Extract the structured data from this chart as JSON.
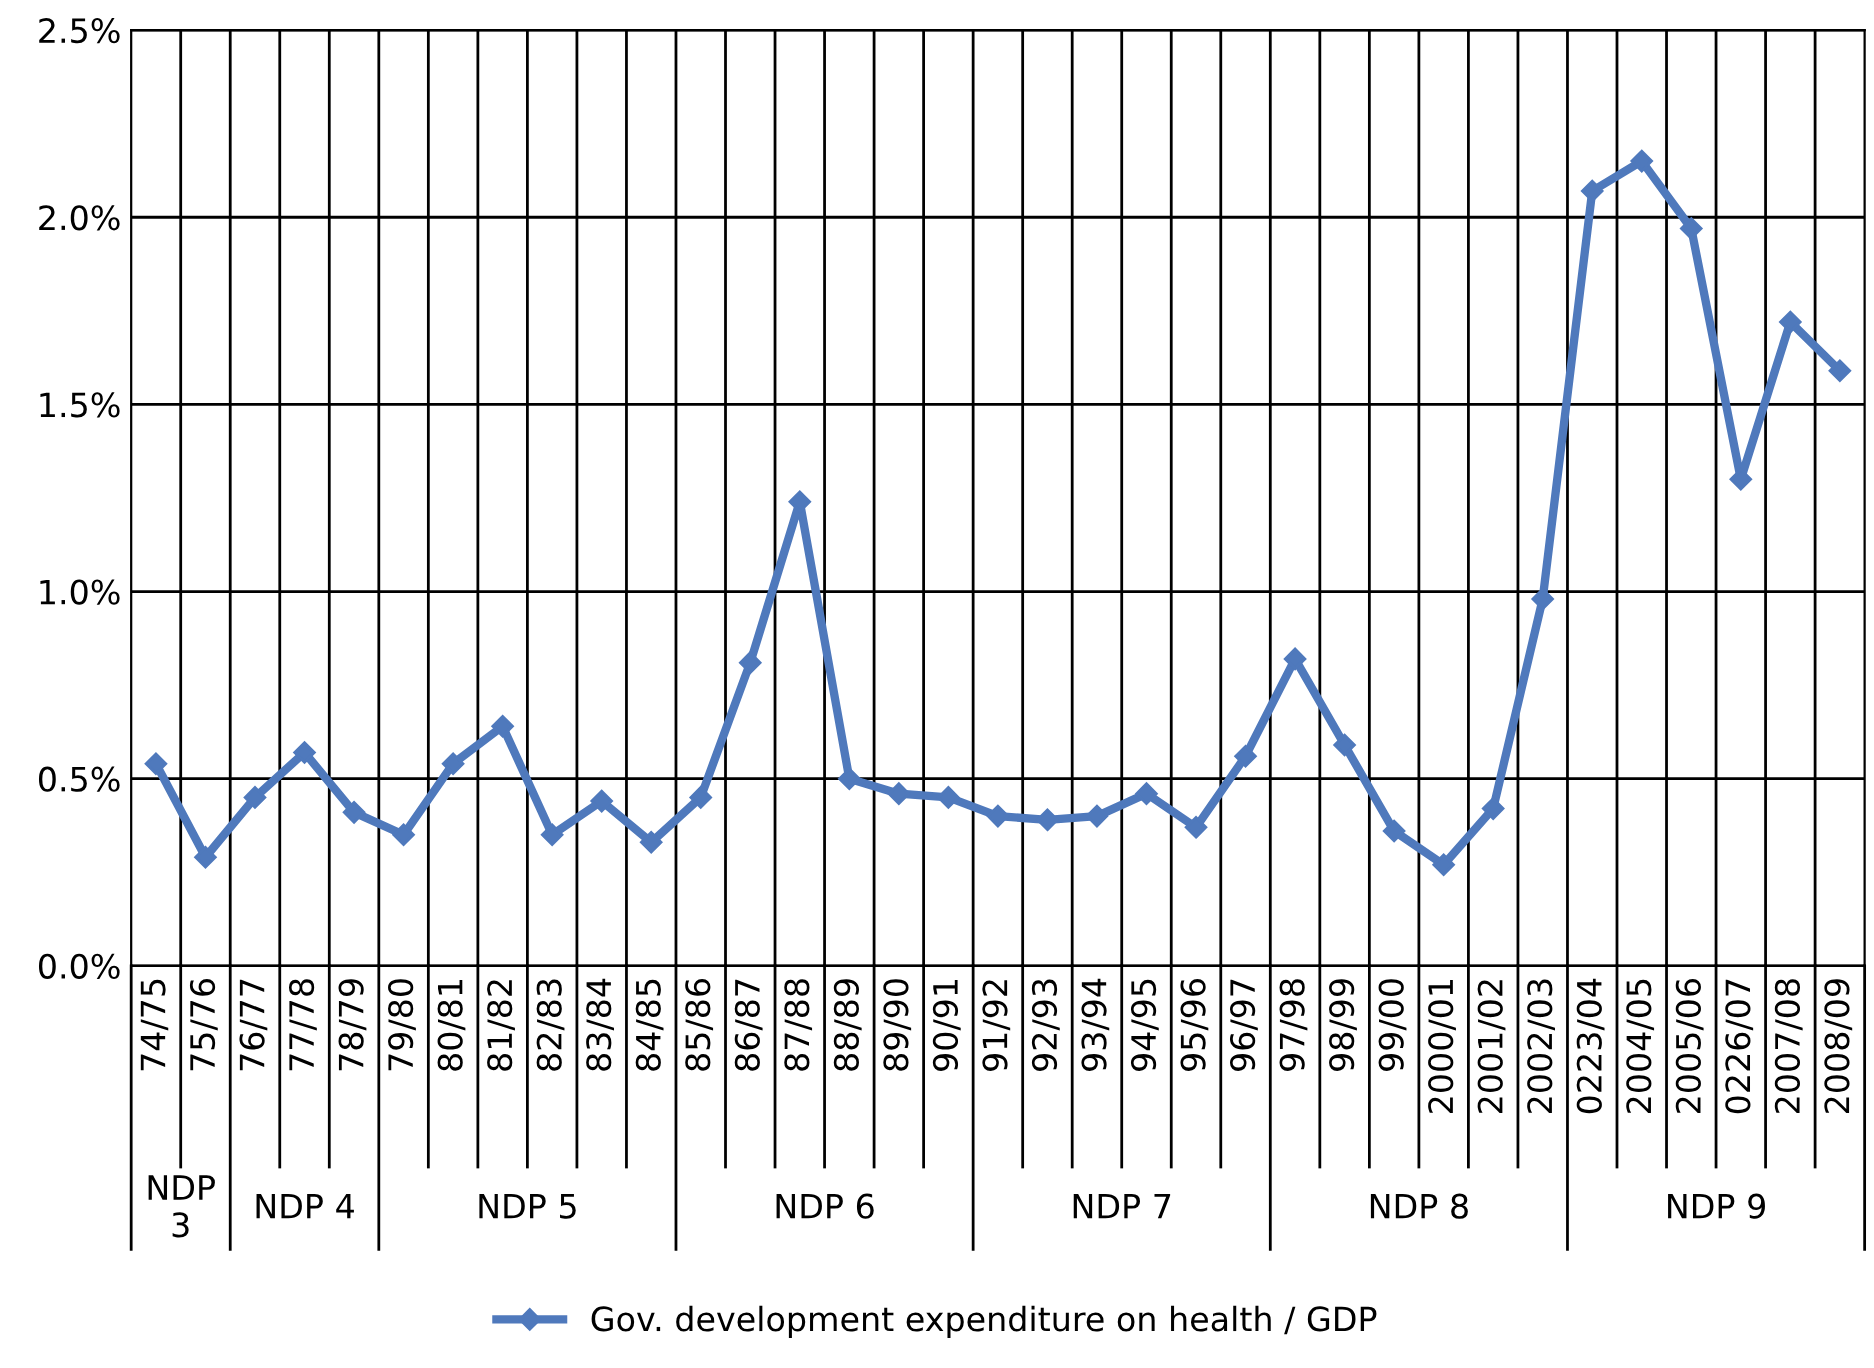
{
  "chart_data": {
    "type": "line",
    "categories": [
      "74/75",
      "75/76",
      "76/77",
      "77/78",
      "78/79",
      "79/80",
      "80/81",
      "81/82",
      "82/83",
      "83/84",
      "84/85",
      "85/86",
      "86/87",
      "87/88",
      "88/89",
      "89/90",
      "90/91",
      "91/92",
      "92/93",
      "93/94",
      "94/95",
      "95/96",
      "96/97",
      "97/98",
      "98/99",
      "99/00",
      "2000/01",
      "2001/02",
      "2002/03",
      "0223/04",
      "2004/05",
      "2005/06",
      "0226/07",
      "2007/08",
      "2008/09"
    ],
    "series": [
      {
        "name": "Gov. development expenditure on health / GDP",
        "color": "#4f79bc",
        "values": [
          0.54,
          0.29,
          0.45,
          0.57,
          0.41,
          0.35,
          0.54,
          0.64,
          0.35,
          0.44,
          0.33,
          0.45,
          0.81,
          1.24,
          0.5,
          0.46,
          0.45,
          0.4,
          0.39,
          0.4,
          0.46,
          0.37,
          0.56,
          0.82,
          0.59,
          0.36,
          0.27,
          0.42,
          0.98,
          2.07,
          2.15,
          1.97,
          1.3,
          1.72,
          1.59
        ]
      }
    ],
    "ylim": [
      0,
      2.5
    ],
    "yticks": [
      {
        "value": 0,
        "label": "0.0%"
      },
      {
        "value": 0.5,
        "label": "0.5%"
      },
      {
        "value": 1.0,
        "label": "1.0%"
      },
      {
        "value": 1.5,
        "label": "1.5%"
      },
      {
        "value": 2.0,
        "label": "2.0%"
      },
      {
        "value": 2.5,
        "label": "2.5%"
      }
    ],
    "grid": true,
    "marker": "diamond",
    "line_style": "solid",
    "legend": "bottom",
    "annotations": [
      "NDP\n3",
      "NDP 4",
      "NDP 5",
      "NDP 6",
      "NDP 7",
      "NDP 8",
      "NDP 9"
    ]
  }
}
